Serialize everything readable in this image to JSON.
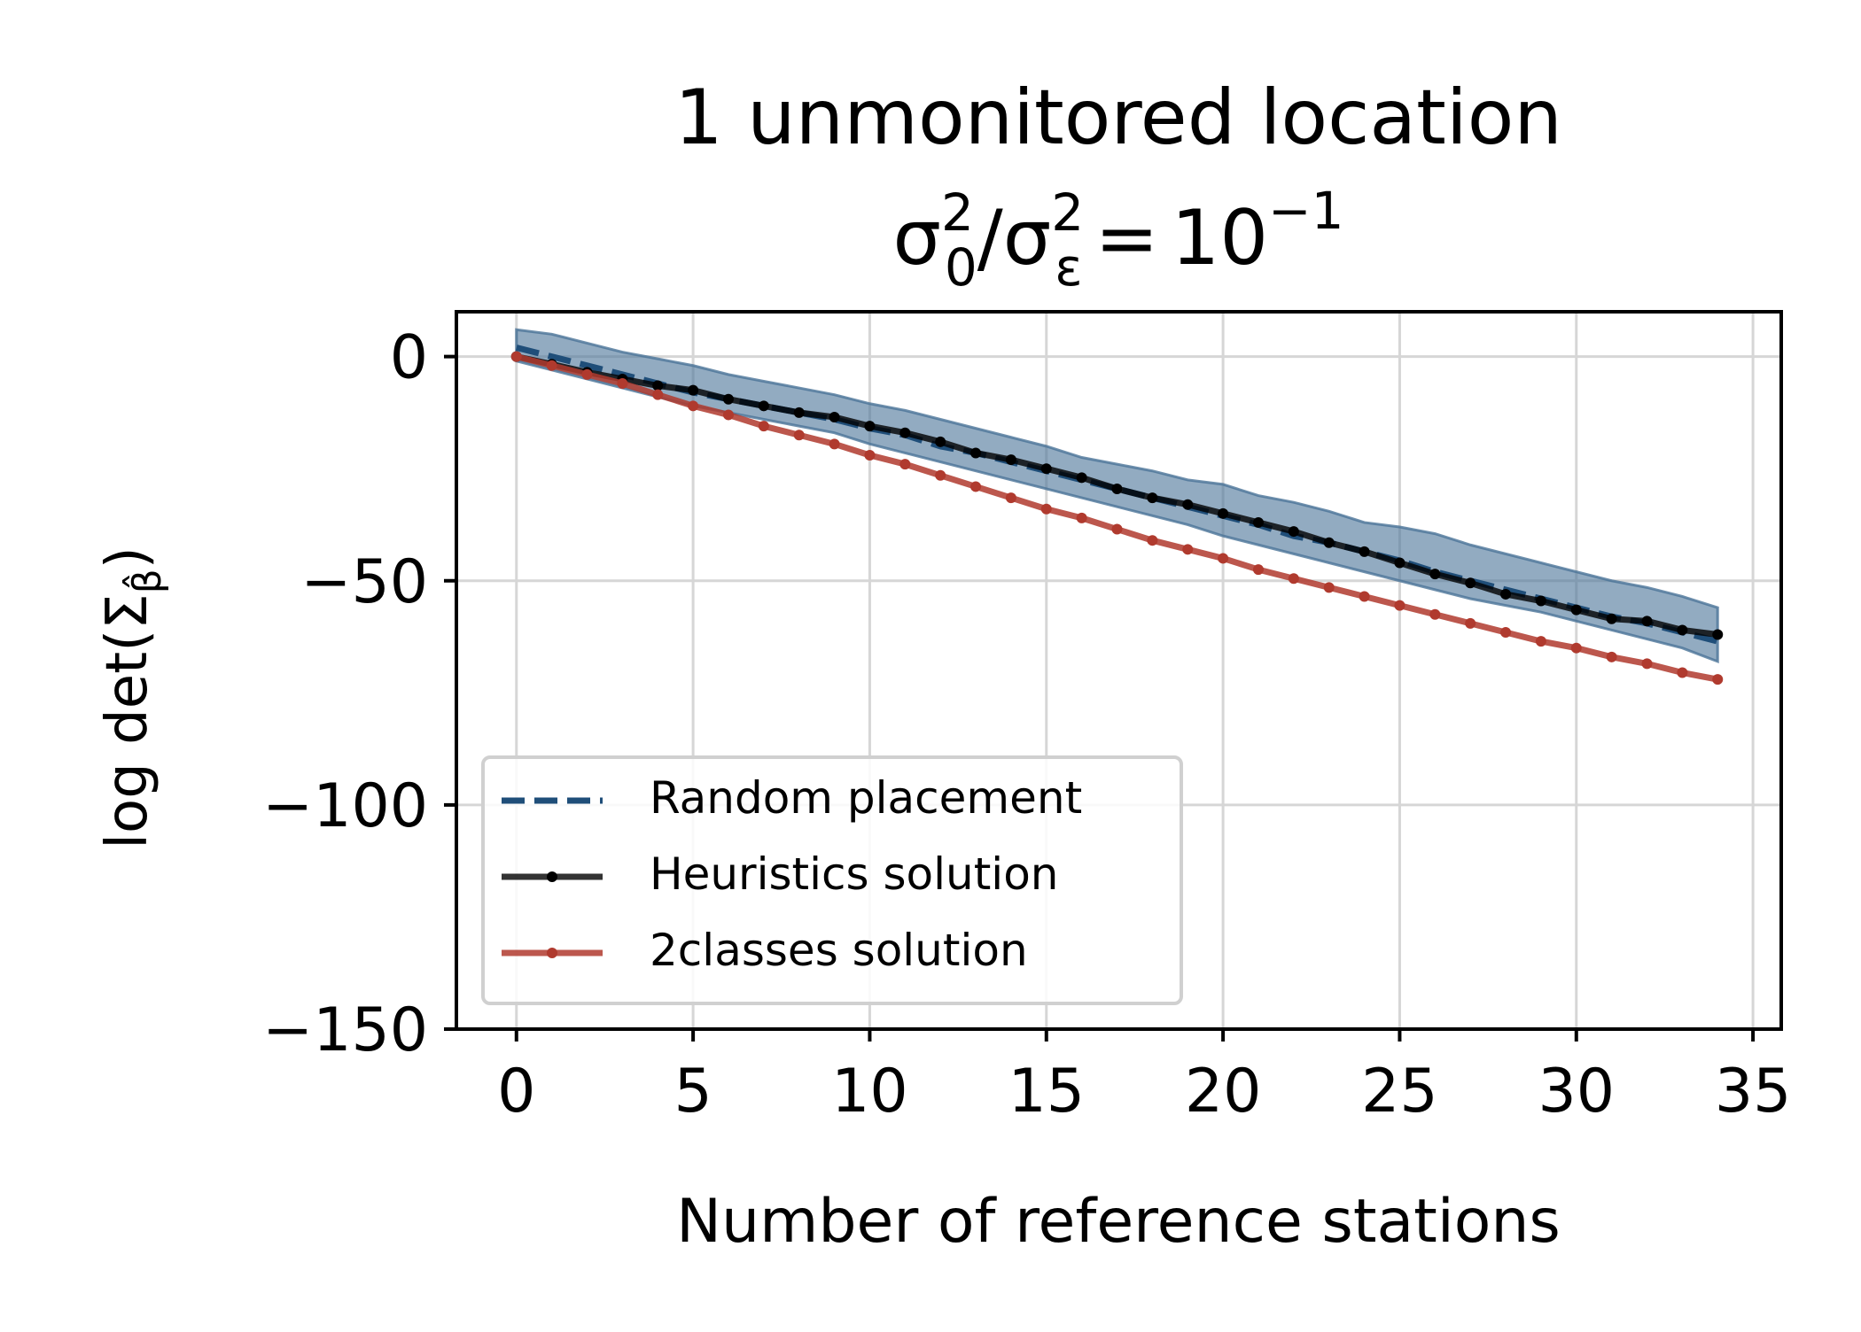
{
  "chart_data": {
    "type": "line",
    "title": {
      "line1": "1 unmonitored location",
      "ratio": {
        "sigma": "σ",
        "sub_num": "0",
        "sup_num": "2",
        "slash": "/",
        "sub_den": "ε",
        "sup_den": "2",
        "equals": "=",
        "base": "10",
        "exponent": "−1"
      }
    },
    "xlabel": "Number of reference stations",
    "ylabel": {
      "prefix": "log det(",
      "sigma": "Σ",
      "sub": "β̂",
      "suffix": ")"
    },
    "xlim": [
      -1.7,
      35.8
    ],
    "ylim": [
      -150,
      10
    ],
    "xticks": [
      0,
      5,
      10,
      15,
      20,
      25,
      30,
      35
    ],
    "yticks": [
      0,
      -50,
      -100,
      -150
    ],
    "xtick_labels": [
      "0",
      "5",
      "10",
      "15",
      "20",
      "25",
      "30",
      "35"
    ],
    "ytick_labels": [
      "0",
      "−50",
      "−100",
      "−150"
    ],
    "grid": true,
    "legend_position": "lower-left",
    "x": [
      0,
      1,
      2,
      3,
      4,
      5,
      6,
      7,
      8,
      9,
      10,
      11,
      12,
      13,
      14,
      15,
      16,
      17,
      18,
      19,
      20,
      21,
      22,
      23,
      24,
      25,
      26,
      27,
      28,
      29,
      30,
      31,
      32,
      33,
      34
    ],
    "series": [
      {
        "name": "Random placement",
        "style": "dashed",
        "color": "#1f4e79",
        "values": [
          2,
          0,
          -2,
          -4,
          -6,
          -8,
          -9.5,
          -11,
          -12.5,
          -14,
          -16,
          -17.5,
          -20,
          -21.5,
          -23.5,
          -25.5,
          -27.5,
          -29.5,
          -31.5,
          -33.5,
          -35.5,
          -37.5,
          -40,
          -41.5,
          -43.5,
          -45.5,
          -48,
          -50,
          -52,
          -54,
          -56,
          -58,
          -59.5,
          -61.5,
          -63.5
        ],
        "band_upper": [
          6,
          5,
          3,
          1,
          -0.5,
          -2,
          -4,
          -5.5,
          -7,
          -8.5,
          -10.5,
          -12,
          -14,
          -16,
          -18,
          -20,
          -22.5,
          -24,
          -25.5,
          -27.5,
          -28.5,
          -31,
          -32.5,
          -34.5,
          -37,
          -38,
          -39.5,
          -42,
          -44,
          -46,
          -48,
          -50,
          -51.5,
          -53.5,
          -56
        ],
        "band_lower": [
          -1,
          -3,
          -5,
          -7,
          -9,
          -11,
          -12.5,
          -14,
          -15.5,
          -17,
          -19.5,
          -21.5,
          -23.5,
          -25.5,
          -27.5,
          -29.5,
          -31.5,
          -33.5,
          -35.5,
          -37.5,
          -40,
          -42,
          -44,
          -46,
          -48,
          -50,
          -52,
          -54,
          -55.5,
          -57,
          -59,
          -61,
          -63,
          -65,
          -68
        ]
      },
      {
        "name": "Heuristics solution",
        "style": "solid-dots",
        "color": "#000000",
        "values": [
          0,
          -1.7,
          -3.5,
          -5,
          -6.5,
          -7.5,
          -9.5,
          -11,
          -12.5,
          -13.5,
          -15.5,
          -17,
          -19,
          -21.5,
          -23,
          -25,
          -27,
          -29.5,
          -31.5,
          -33,
          -35,
          -37,
          -39,
          -41.5,
          -43.5,
          -46,
          -48.5,
          -50.5,
          -53,
          -54.5,
          -56.5,
          -58.5,
          -59,
          -61,
          -62
        ]
      },
      {
        "name": "2classes solution",
        "style": "solid-dots",
        "color": "#b03a2e",
        "values": [
          0,
          -2,
          -4,
          -6,
          -8.5,
          -11,
          -13,
          -15.5,
          -17.5,
          -19.5,
          -22,
          -24,
          -26.5,
          -29,
          -31.5,
          -34,
          -36,
          -38.5,
          -41,
          -43,
          -45,
          -47.5,
          -49.5,
          -51.5,
          -53.5,
          -55.5,
          -57.5,
          -59.5,
          -61.5,
          -63.5,
          -65,
          -67,
          -68.5,
          -70.5,
          -72
        ]
      }
    ]
  }
}
